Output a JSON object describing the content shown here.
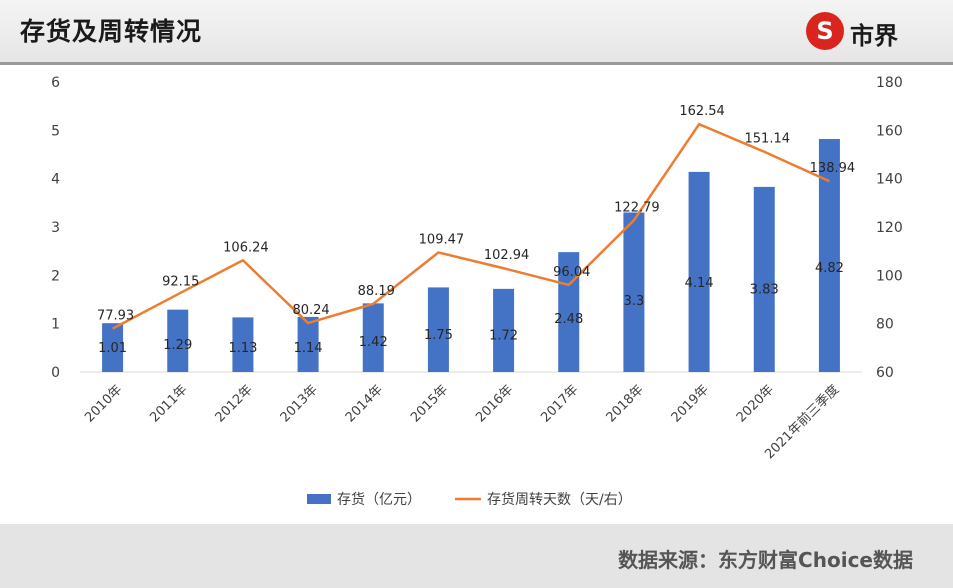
{
  "header": {
    "title": "存货及周转情况",
    "logo_text": "市界",
    "logo_mark": "S"
  },
  "footer": {
    "source": "数据来源：东方财富Choice数据"
  },
  "colors": {
    "bar": "#4472c4",
    "line": "#ed7d31"
  },
  "chart_data": {
    "type": "bar",
    "title": "",
    "categories": [
      "2010年",
      "2011年",
      "2012年",
      "2013年",
      "2014年",
      "2015年",
      "2016年",
      "2017年",
      "2018年",
      "2019年",
      "2020年",
      "2021年前三季度"
    ],
    "series": [
      {
        "name": "存货（亿元）",
        "type": "bar",
        "axis": "left",
        "values": [
          1.01,
          1.29,
          1.13,
          1.14,
          1.42,
          1.75,
          1.72,
          2.48,
          3.3,
          4.14,
          3.83,
          4.82
        ]
      },
      {
        "name": "存货周转天数（天/右）",
        "type": "line",
        "axis": "right",
        "values": [
          77.93,
          92.15,
          106.24,
          80.24,
          88.19,
          109.47,
          102.94,
          96.04,
          122.79,
          162.54,
          151.14,
          138.94
        ]
      }
    ],
    "y_left": {
      "min": 0,
      "max": 6,
      "ticks": [
        "0",
        "1",
        "2",
        "3",
        "4",
        "5",
        "6"
      ]
    },
    "y_right": {
      "min": 60,
      "max": 180,
      "ticks": [
        "60",
        "80",
        "100",
        "120",
        "140",
        "160",
        "180"
      ]
    },
    "bar_labels": [
      "1.01",
      "1.29",
      "1.13",
      "1.14",
      "1.42",
      "1.75",
      "1.72",
      "2.48",
      "3.3",
      "4.14",
      "3.83",
      "4.82"
    ],
    "line_labels": [
      "77.93",
      "92.15",
      "106.24",
      "80.24",
      "88.19",
      "109.47",
      "102.94",
      "96.04",
      "122.79",
      "162.54",
      "151.14",
      "138.94"
    ],
    "grid": false,
    "legend": "bottom"
  }
}
